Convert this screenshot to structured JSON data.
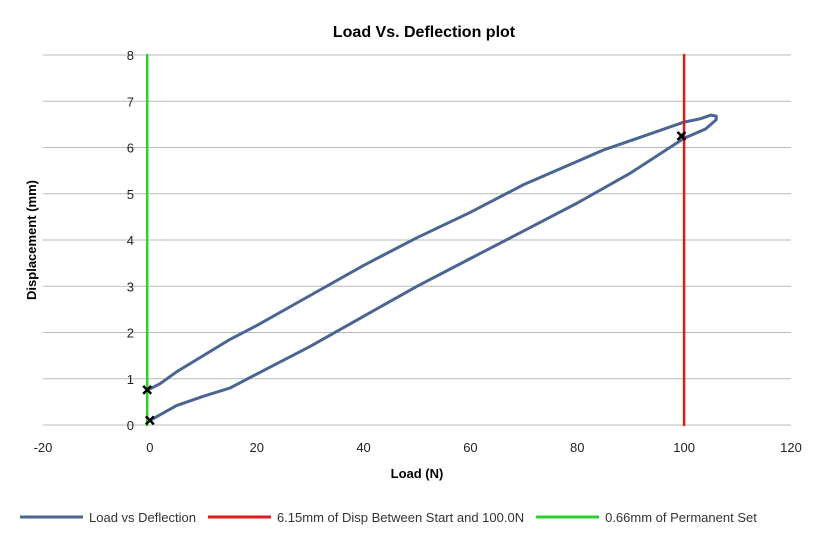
{
  "chart_data": {
    "type": "line",
    "title": "Load Vs. Deflection plot",
    "xlabel": "Load (N)",
    "ylabel": "Displacement (mm)",
    "xlim": [
      -20,
      120
    ],
    "ylim": [
      0,
      8
    ],
    "xticks": [
      -20,
      0,
      20,
      40,
      60,
      80,
      100,
      120
    ],
    "yticks": [
      0,
      1,
      2,
      3,
      4,
      5,
      6,
      7,
      8
    ],
    "grid": "horizontal",
    "legend_position": "bottom",
    "series": [
      {
        "name": "Load vs Deflection",
        "color": "#4a6591",
        "x": [
          0,
          5,
          10,
          15,
          20,
          30,
          40,
          50,
          60,
          70,
          80,
          90,
          100,
          104,
          106,
          106,
          105,
          103,
          100,
          95,
          90,
          85,
          80,
          70,
          60,
          50,
          40,
          30,
          20,
          15,
          10,
          5,
          2,
          0
        ],
        "y": [
          0.1,
          0.42,
          0.62,
          0.8,
          1.1,
          1.7,
          2.35,
          3.0,
          3.6,
          4.2,
          4.8,
          5.45,
          6.2,
          6.4,
          6.6,
          6.68,
          6.7,
          6.62,
          6.55,
          6.35,
          6.15,
          5.95,
          5.7,
          5.2,
          4.6,
          4.05,
          3.45,
          2.8,
          2.15,
          1.85,
          1.5,
          1.15,
          0.9,
          0.78
        ]
      },
      {
        "name": "6.15mm of Disp Between Start and 100.0N",
        "color": "#dd1b1b",
        "x": [
          100,
          100
        ],
        "y": [
          0,
          8
        ]
      },
      {
        "name": "0.66mm of Permanent Set",
        "color": "#2dd12d",
        "x": [
          -0.5,
          -0.5
        ],
        "y": [
          0,
          8
        ]
      }
    ],
    "markers": [
      {
        "x": 0,
        "y": 0.1
      },
      {
        "x": -0.5,
        "y": 0.76
      },
      {
        "x": 99.5,
        "y": 6.25
      }
    ]
  }
}
